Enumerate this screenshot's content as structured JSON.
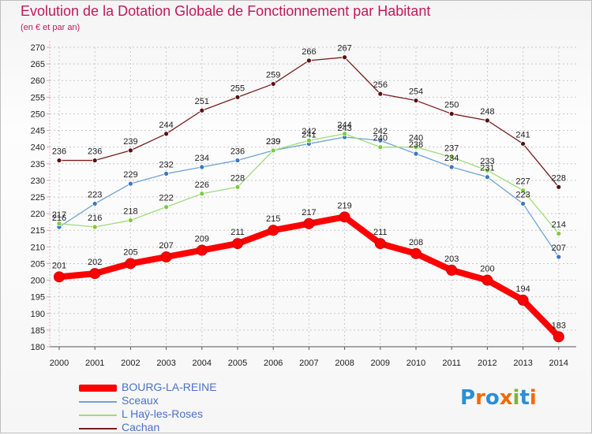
{
  "chart_data": {
    "type": "line",
    "title": "Evolution de la Dotation Globale de Fonctionnement par Habitant",
    "subtitle": "(en € et par an)",
    "xlabel": "",
    "ylabel": "",
    "ylim": [
      180,
      270
    ],
    "y_ticks": [
      180,
      185,
      190,
      195,
      200,
      205,
      210,
      215,
      220,
      225,
      230,
      235,
      240,
      245,
      250,
      255,
      260,
      265,
      270
    ],
    "categories": [
      "2000",
      "2001",
      "2002",
      "2003",
      "2004",
      "2005",
      "2006",
      "2007",
      "2008",
      "2009",
      "2010",
      "2011",
      "2012",
      "2013",
      "2014"
    ],
    "grid": true,
    "legend_position": "bottom-left",
    "series": [
      {
        "name": "Cachan",
        "color": "#7a1d1d",
        "marker": "#5a1010",
        "values": [
          236,
          236,
          239,
          244,
          251,
          255,
          259,
          266,
          267,
          256,
          254,
          250,
          248,
          241,
          228
        ]
      },
      {
        "name": "Sceaux",
        "color": "#6fa3d6",
        "marker": "#3b77c4",
        "values": [
          216,
          223,
          229,
          232,
          234,
          236,
          239,
          241,
          243,
          242,
          238,
          234,
          231,
          223,
          207
        ]
      },
      {
        "name": "L Haÿ-les-Roses",
        "color": "#9fdc7a",
        "marker": "#7ccc3a",
        "values": [
          217,
          216,
          218,
          222,
          226,
          228,
          239,
          242,
          244,
          240,
          240,
          237,
          233,
          227,
          214
        ]
      },
      {
        "name": "BOURG-LA-REINE",
        "color": "#ff0000",
        "marker": "#ff0000",
        "values": [
          201,
          202,
          205,
          207,
          209,
          211,
          215,
          217,
          219,
          211,
          208,
          203,
          200,
          194,
          183
        ]
      }
    ]
  },
  "legend": {
    "items": [
      {
        "label": "BOURG-LA-REINE",
        "color": "#ff0000"
      },
      {
        "label": "Sceaux",
        "color": "#6fa3d6"
      },
      {
        "label": "L  Haÿ-les-Roses",
        "color": "#9fdc7a"
      },
      {
        "label": "Cachan",
        "color": "#7a1d1d"
      }
    ]
  },
  "brand": {
    "text": "Proxiti",
    "letter_colors": [
      "#2a8fd6",
      "#ef6c00",
      "#2a8fd6",
      "#ef6c00",
      "#7cb342",
      "#2a8fd6",
      "#ef6c00"
    ]
  }
}
